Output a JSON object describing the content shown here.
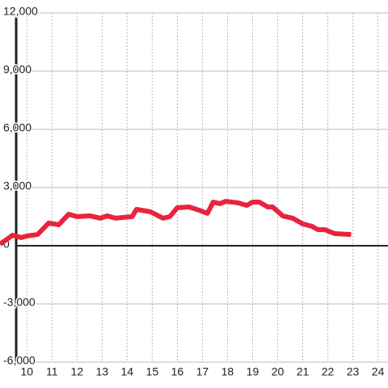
{
  "chart_data": {
    "type": "line",
    "x": [
      8.93,
      9.43,
      9.77,
      10,
      10.43,
      10.87,
      11.27,
      11.67,
      12,
      12.53,
      12.93,
      13.2,
      13.53,
      14.2,
      14.37,
      14.93,
      15.43,
      15.7,
      16,
      16.47,
      16.87,
      17.2,
      17.43,
      17.7,
      17.93,
      18.43,
      18.77,
      19,
      19.27,
      19.6,
      19.8,
      20.2,
      20.6,
      21,
      21.37,
      21.6,
      21.87,
      22.27,
      22.93
    ],
    "series": [
      {
        "color": "#e8243c",
        "values": [
          80,
          540,
          420,
          500,
          580,
          1170,
          1080,
          1625,
          1500,
          1540,
          1420,
          1540,
          1420,
          1500,
          1875,
          1750,
          1420,
          1500,
          1960,
          2000,
          1830,
          1670,
          2250,
          2170,
          2290,
          2210,
          2080,
          2250,
          2250,
          2000,
          2000,
          1540,
          1420,
          1125,
          1000,
          830,
          830,
          625,
          580
        ]
      }
    ],
    "xlim": [
      8.93,
      24.4
    ],
    "xticks": [
      10,
      11,
      12,
      13,
      14,
      15,
      16,
      17,
      18,
      19,
      20,
      21,
      22,
      23,
      24
    ],
    "ylim": [
      -6000,
      12000
    ],
    "yticks": [
      {
        "value": -6000,
        "label": "-6,000"
      },
      {
        "value": -3000,
        "label": "-3,000"
      },
      0,
      {
        "value": 3000,
        "label": "3,000"
      },
      {
        "value": 6000,
        "label": "6,000"
      },
      {
        "value": 9000,
        "label": "9,000"
      },
      {
        "value": 12000,
        "label": "12,000"
      }
    ],
    "grid": true
  }
}
